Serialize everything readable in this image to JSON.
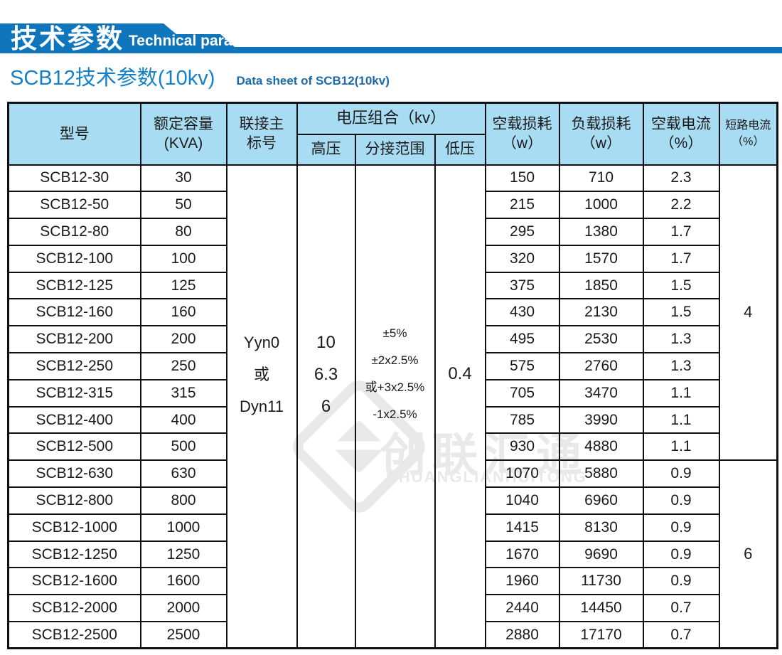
{
  "banner": {
    "title_cn": "技术参数",
    "title_en": "Technical parameter"
  },
  "subtitle": {
    "cn": "SCB12技术参数(10kv)",
    "en": "Data sheet of SCB12(10kv)"
  },
  "watermark": {
    "cn": "创联汇通",
    "en": "CHUANGLIANHUITONG"
  },
  "colors": {
    "banner_blue": "#0f75bd",
    "header_bg": "#a8dcf2",
    "subtitle_cn": "#1581c6",
    "subtitle_en": "#1b6aa9",
    "border_color": "#101010",
    "wm_gray": "#e9e9e9"
  },
  "table": {
    "headers": {
      "model": "型号",
      "capacity": "额定容量\n(KVA)",
      "connection": "联接主\n标号",
      "voltage_group": "电压组合（kv）",
      "hv": "高压",
      "tap": "分接范围",
      "lv": "低压",
      "no_load_loss": "空载损耗\n（w）",
      "load_loss": "负载损耗\n（w）",
      "no_load_current": "空载电流\n（%）",
      "short_circuit": "短路电流\n（%）"
    },
    "merged": {
      "connection": "Yyn0\n或\nDyn11",
      "hv": "10\n6.3\n6",
      "tap": "±5%\n±2x2.5%\n或+3x2.5%\n-1x2.5%",
      "lv": "0.4"
    },
    "short_circuit_groups": [
      {
        "value": "4",
        "row_count": 11
      },
      {
        "value": "6",
        "row_count": 7
      }
    ],
    "rows": [
      {
        "model": "SCB12-30",
        "kva": "30",
        "no_load_loss": "150",
        "load_loss": "710",
        "no_load_current": "2.3"
      },
      {
        "model": "SCB12-50",
        "kva": "50",
        "no_load_loss": "215",
        "load_loss": "1000",
        "no_load_current": "2.2"
      },
      {
        "model": "SCB12-80",
        "kva": "80",
        "no_load_loss": "295",
        "load_loss": "1380",
        "no_load_current": "1.7"
      },
      {
        "model": "SCB12-100",
        "kva": "100",
        "no_load_loss": "320",
        "load_loss": "1570",
        "no_load_current": "1.7"
      },
      {
        "model": "SCB12-125",
        "kva": "125",
        "no_load_loss": "375",
        "load_loss": "1850",
        "no_load_current": "1.5"
      },
      {
        "model": "SCB12-160",
        "kva": "160",
        "no_load_loss": "430",
        "load_loss": "2130",
        "no_load_current": "1.5"
      },
      {
        "model": "SCB12-200",
        "kva": "200",
        "no_load_loss": "495",
        "load_loss": "2530",
        "no_load_current": "1.3"
      },
      {
        "model": "SCB12-250",
        "kva": "250",
        "no_load_loss": "575",
        "load_loss": "2760",
        "no_load_current": "1.3"
      },
      {
        "model": "SCB12-315",
        "kva": "315",
        "no_load_loss": "705",
        "load_loss": "3470",
        "no_load_current": "1.1"
      },
      {
        "model": "SCB12-400",
        "kva": "400",
        "no_load_loss": "785",
        "load_loss": "3990",
        "no_load_current": "1.1"
      },
      {
        "model": "SCB12-500",
        "kva": "500",
        "no_load_loss": "930",
        "load_loss": "4880",
        "no_load_current": "1.1"
      },
      {
        "model": "SCB12-630",
        "kva": "630",
        "no_load_loss": "1070",
        "load_loss": "5880",
        "no_load_current": "0.9"
      },
      {
        "model": "SCB12-800",
        "kva": "800",
        "no_load_loss": "1040",
        "load_loss": "6960",
        "no_load_current": "0.9"
      },
      {
        "model": "SCB12-1000",
        "kva": "1000",
        "no_load_loss": "1415",
        "load_loss": "8130",
        "no_load_current": "0.9"
      },
      {
        "model": "SCB12-1250",
        "kva": "1250",
        "no_load_loss": "1670",
        "load_loss": "9690",
        "no_load_current": "0.9"
      },
      {
        "model": "SCB12-1600",
        "kva": "1600",
        "no_load_loss": "1960",
        "load_loss": "11730",
        "no_load_current": "0.9"
      },
      {
        "model": "SCB12-2000",
        "kva": "2000",
        "no_load_loss": "2440",
        "load_loss": "14450",
        "no_load_current": "0.7"
      },
      {
        "model": "SCB12-2500",
        "kva": "2500",
        "no_load_loss": "2880",
        "load_loss": "17170",
        "no_load_current": "0.7"
      }
    ]
  }
}
